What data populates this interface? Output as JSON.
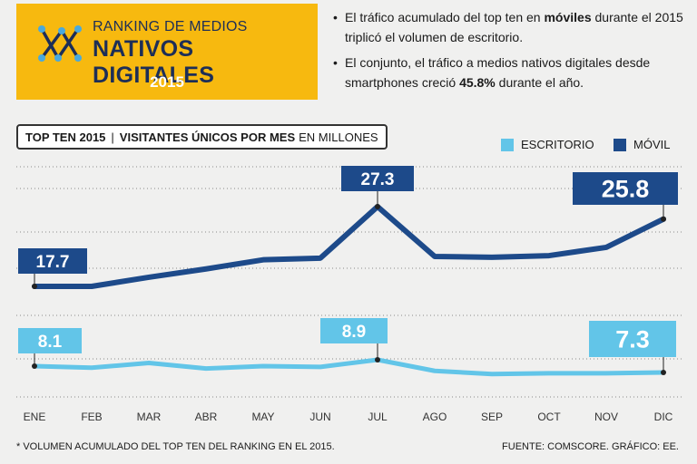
{
  "header": {
    "title_small": "RANKING DE MEDIOS",
    "title_big": "NATIVOS DIGITALES",
    "year": "2015",
    "colors": {
      "box": "#f7b90f",
      "title": "#1d2e57",
      "year": "#ffffff"
    }
  },
  "bullets": [
    {
      "pre": "El tráfico acumulado del top ten en ",
      "bold": "móviles",
      "post": " durante el 2015 triplicó el volumen de escritorio."
    },
    {
      "pre": "El conjunto, el tráfico a medios nativos digitales desde smartphones creció ",
      "bold": "45.8%",
      "post": " durante el año."
    }
  ],
  "chart_title": {
    "part1": "TOP TEN 2015",
    "part2": "VISITANTES ÚNICOS POR MES",
    "part3": "EN MILLONES"
  },
  "chart_data": {
    "type": "line",
    "title": "TOP TEN 2015 | VISITANTES ÚNICOS POR MES EN MILLONES",
    "categories": [
      "ENE",
      "FEB",
      "MAR",
      "ABR",
      "MAY",
      "JUN",
      "JUL",
      "AGO",
      "SEP",
      "OCT",
      "NOV",
      "DIC"
    ],
    "series": [
      {
        "name": "MÓVIL",
        "color": "#1d4a8a",
        "values": [
          17.7,
          17.7,
          18.8,
          19.8,
          20.9,
          21.1,
          27.3,
          21.3,
          21.2,
          21.4,
          22.4,
          25.8
        ],
        "labels": [
          {
            "index": 0,
            "text": "17.7"
          },
          {
            "index": 6,
            "text": "27.3"
          },
          {
            "index": 11,
            "text": "25.8"
          }
        ]
      },
      {
        "name": "ESCRITORIO",
        "color": "#62c5e8",
        "values": [
          8.1,
          7.9,
          8.5,
          7.8,
          8.1,
          8.0,
          8.9,
          7.5,
          7.1,
          7.2,
          7.2,
          7.3
        ],
        "labels": [
          {
            "index": 0,
            "text": "8.1"
          },
          {
            "index": 6,
            "text": "8.9"
          },
          {
            "index": 11,
            "text": "7.3"
          }
        ]
      }
    ],
    "legend": [
      {
        "label": "ESCRITORIO",
        "color": "#62c5e8"
      },
      {
        "label": "MÓVIL",
        "color": "#1d4a8a"
      }
    ],
    "legend_position": "top-right",
    "grid": true,
    "ylim": [
      2,
      31
    ]
  },
  "footnote": "* VOLUMEN ACUMULADO DEL TOP TEN DEL RANKING EN EL 2015.",
  "source": "FUENTE: COMSCORE. GRÁFICO: EE."
}
